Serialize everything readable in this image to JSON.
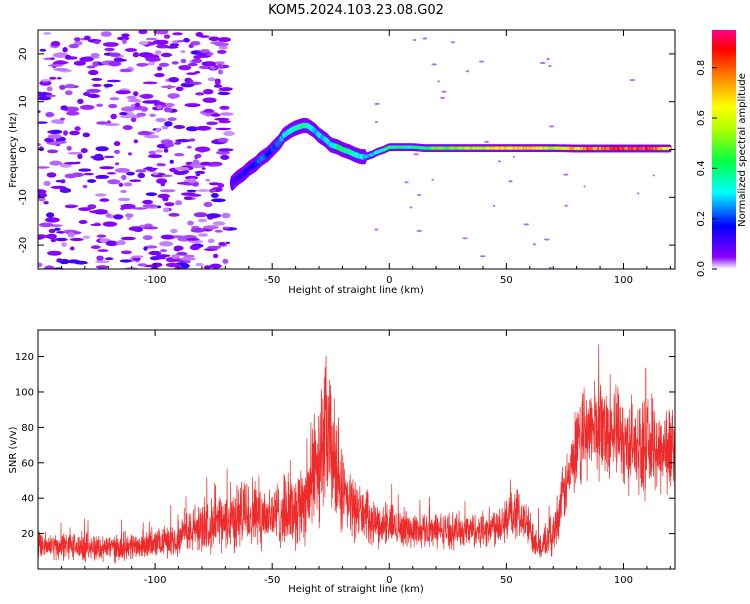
{
  "title": "KOM5.2024.103.23.08.G02",
  "colors": {
    "snr_line": "#ee2a2a",
    "colorbar": [
      "#ffffff",
      "#7a00ff",
      "#0000ff",
      "#00ffff",
      "#00ff00",
      "#ffff00",
      "#ff8800",
      "#ff0000",
      "#ff00aa"
    ]
  },
  "chart_data": [
    {
      "type": "heatmap",
      "title": "",
      "xlabel": "Height of straight line (km)",
      "ylabel": "Frequency (Hz)",
      "xlim": [
        -150,
        122
      ],
      "ylim": [
        -25,
        25
      ],
      "xticks": [
        -100,
        -50,
        0,
        50,
        100
      ],
      "xtick_labels": [
        "-100",
        "-50",
        "0",
        "50",
        "100"
      ],
      "yticks": [
        -20,
        -10,
        0,
        10,
        20
      ],
      "ytick_labels": [
        "-20",
        "-10",
        "0",
        "10",
        "20"
      ],
      "colorbar": {
        "label": "Normalized spectral amplitude",
        "range": [
          0,
          0.95
        ],
        "ticks": [
          0.0,
          0.2,
          0.4,
          0.6,
          0.8
        ],
        "tick_labels": [
          "0.0",
          "0.2",
          "0.4",
          "0.6",
          "0.8"
        ]
      },
      "noise_region_x": [
        -150,
        -68
      ],
      "signal_track": {
        "x": [
          -67,
          -65,
          -62,
          -60,
          -57,
          -55,
          -52,
          -50,
          -47,
          -45,
          -42,
          -40,
          -37,
          -35,
          -32,
          -30,
          -27,
          -25,
          -22,
          -20,
          -17,
          -15,
          -12,
          -10,
          -7,
          -5,
          -2,
          0,
          5,
          10,
          15,
          20,
          30,
          40,
          50,
          60,
          70,
          80,
          90,
          100,
          110,
          120
        ],
        "y": [
          -7,
          -6,
          -5,
          -4,
          -3,
          -2,
          -1,
          0,
          1.5,
          3,
          4,
          4.5,
          5,
          5,
          4,
          3,
          2,
          1,
          0.5,
          0,
          -0.5,
          -1,
          -1.5,
          -1.5,
          -1,
          -0.5,
          0,
          0.5,
          0.5,
          0.5,
          0.3,
          0.3,
          0.3,
          0.3,
          0.3,
          0.3,
          0.3,
          0.2,
          0.2,
          0.2,
          0.2,
          0.2
        ],
        "amplitude": [
          0.1,
          0.12,
          0.15,
          0.15,
          0.2,
          0.25,
          0.2,
          0.2,
          0.25,
          0.3,
          0.35,
          0.4,
          0.4,
          0.35,
          0.3,
          0.3,
          0.3,
          0.3,
          0.4,
          0.45,
          0.4,
          0.35,
          0.3,
          0.3,
          0.3,
          0.35,
          0.4,
          0.45,
          0.4,
          0.4,
          0.45,
          0.5,
          0.55,
          0.6,
          0.75,
          0.7,
          0.6,
          0.75,
          0.85,
          0.88,
          0.9,
          0.7
        ]
      }
    },
    {
      "type": "line",
      "title": "",
      "xlabel": "Height of straight line (km)",
      "ylabel": "SNR (v/v)",
      "xlim": [
        -150,
        122
      ],
      "ylim": [
        0,
        135
      ],
      "xticks": [
        -100,
        -50,
        0,
        50,
        100
      ],
      "xtick_labels": [
        "-100",
        "-50",
        "0",
        "50",
        "100"
      ],
      "yticks": [
        20,
        40,
        60,
        80,
        100,
        120
      ],
      "ytick_labels": [
        "20",
        "40",
        "60",
        "80",
        "100",
        "120"
      ],
      "series": [
        {
          "envelope_x": [
            -150,
            -120,
            -100,
            -90,
            -80,
            -70,
            -60,
            -50,
            -45,
            -40,
            -35,
            -30,
            -27,
            -25,
            -22,
            -20,
            -15,
            -10,
            -5,
            0,
            10,
            20,
            30,
            40,
            50,
            55,
            60,
            65,
            70,
            75,
            80,
            85,
            90,
            95,
            100,
            110,
            120
          ],
          "envelope_mean": [
            13,
            12,
            14,
            18,
            24,
            26,
            32,
            30,
            32,
            34,
            42,
            65,
            75,
            70,
            50,
            40,
            35,
            30,
            25,
            25,
            22,
            22,
            22,
            22,
            28,
            32,
            22,
            12,
            20,
            45,
            65,
            80,
            80,
            78,
            72,
            68,
            68
          ],
          "envelope_amp": [
            8,
            8,
            8,
            10,
            14,
            16,
            22,
            18,
            20,
            22,
            26,
            40,
            45,
            40,
            30,
            22,
            18,
            14,
            12,
            12,
            10,
            10,
            10,
            10,
            14,
            14,
            12,
            8,
            12,
            18,
            22,
            26,
            28,
            26,
            26,
            26,
            26
          ]
        }
      ]
    }
  ]
}
